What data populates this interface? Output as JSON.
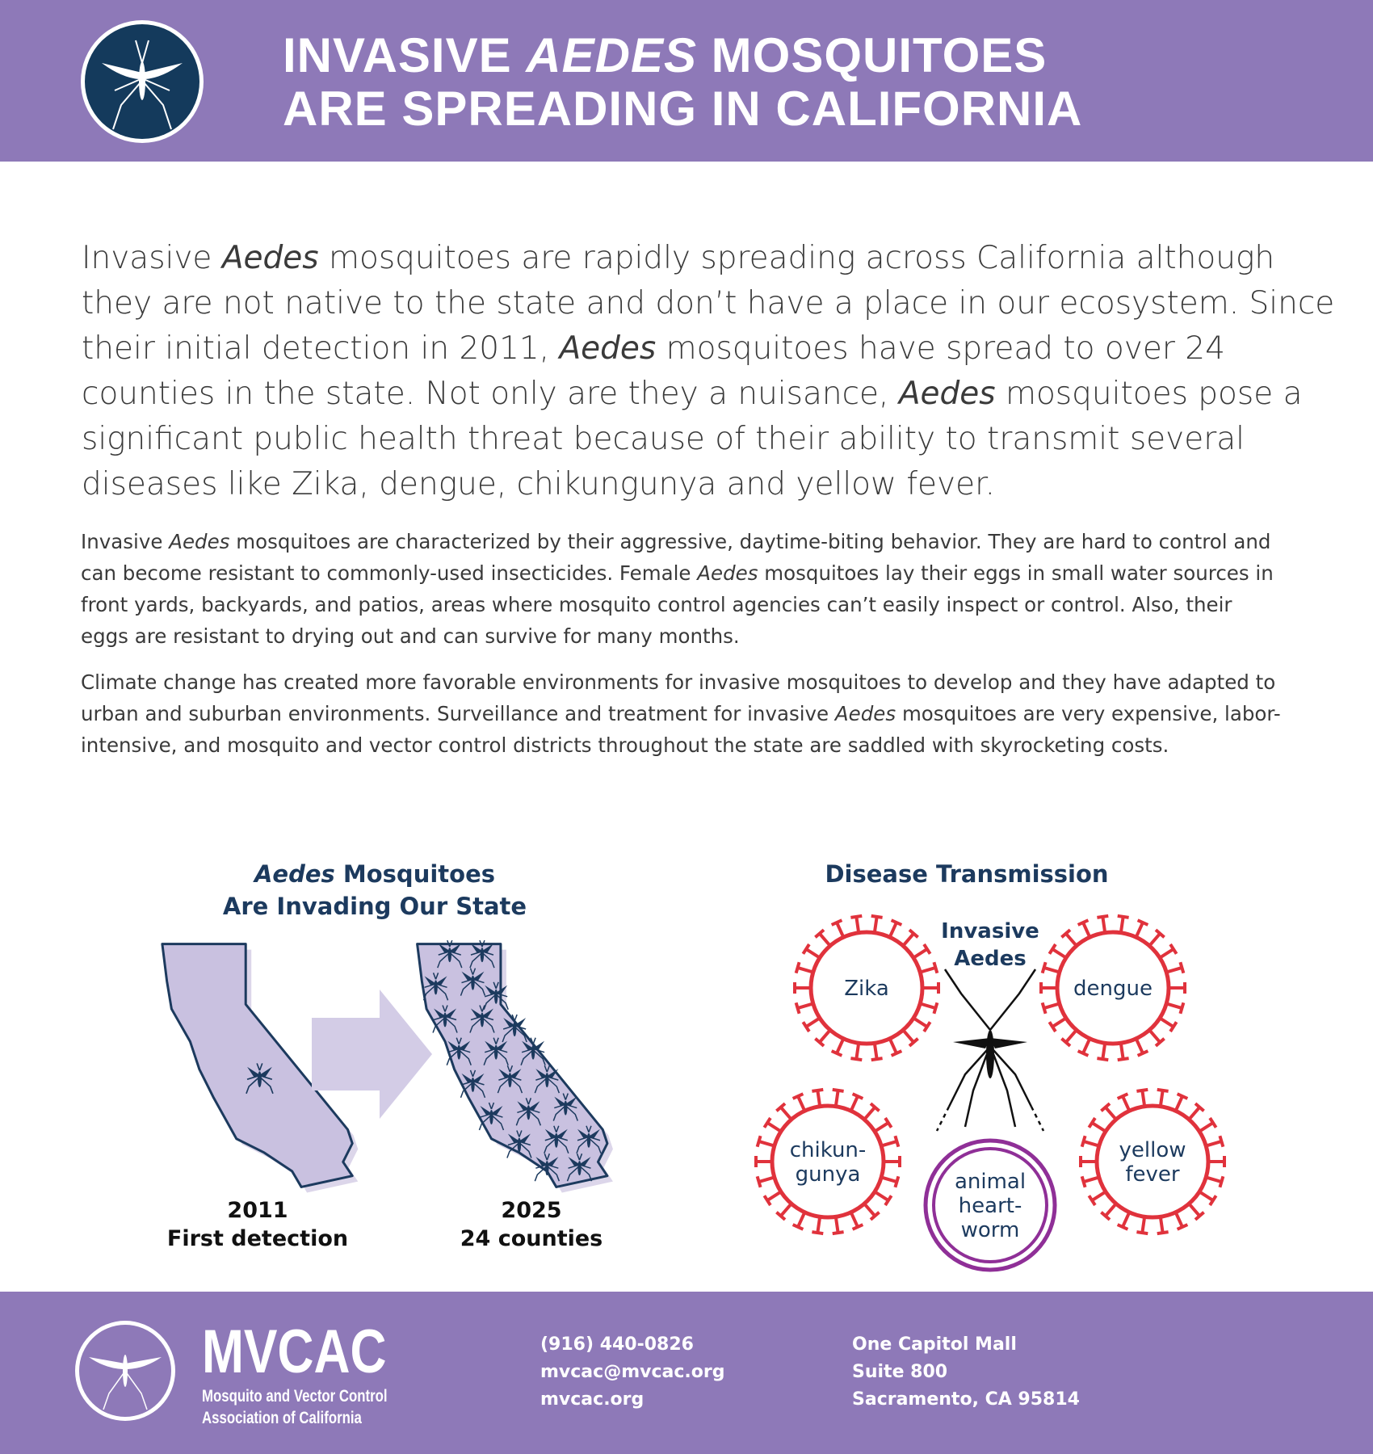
{
  "header": {
    "title_line1": [
      "INVASIVE ",
      "AEDES",
      " MOSQUITOES"
    ],
    "title_line2": "ARE SPREADING IN CALIFORNIA"
  },
  "intro": [
    "Invasive ",
    "Aedes",
    " mosquitoes are rapidly spreading across California although they are not native to the state and don’t have a place in our ecosystem. Since their initial detection in 2011, ",
    "Aedes",
    " mosquitoes have spread to over 24 counties in the state. Not only are they a nuisance, ",
    "Aedes",
    " mosquitoes pose a significant public health threat because of their ability to transmit several diseases like Zika, dengue, chikungunya and yellow fever."
  ],
  "paragraphs": [
    [
      "Invasive ",
      "Aedes",
      " mosquitoes are characterized by their aggressive, daytime-biting behavior. They are hard to control and can become resistant to commonly-used insecticides. Female ",
      "Aedes",
      " mosquitoes lay their eggs in small water sources in front yards, backyards, and patios, areas where mosquito control agencies can’t easily inspect or control. Also, their eggs are resistant to drying out and can survive for many months."
    ],
    [
      "Climate change has created more favorable environments for invasive mosquitoes to develop and they have adapted to urban and suburban environments. Surveillance and treatment for invasive ",
      "Aedes",
      " mosquitoes are very expensive, labor-intensive, and mosquito and vector control districts throughout the state are saddled with skyrocketing costs."
    ]
  ],
  "map_section": {
    "title_line1": [
      "Aedes",
      " Mosquitoes"
    ],
    "title_line2": "Are Invading Our State",
    "before": {
      "year": "2011",
      "label": "First detection"
    },
    "after": {
      "year": "2025",
      "label": "24 counties"
    }
  },
  "disease_section": {
    "title": "Disease Transmission",
    "center_label": [
      "Invasive",
      "Aedes"
    ],
    "diseases": [
      {
        "lines": [
          "Zika"
        ]
      },
      {
        "lines": [
          "dengue"
        ]
      },
      {
        "lines": [
          "chikun-",
          "gunya"
        ]
      },
      {
        "lines": [
          "yellow",
          "fever"
        ]
      },
      {
        "lines": [
          "animal",
          "heart-",
          "worm"
        ]
      }
    ]
  },
  "footer": {
    "org_short": "MVCAC",
    "org_long": [
      "Mosquito and Vector Control",
      "Association of California"
    ],
    "contact": [
      "(916) 440-0826",
      "mvcac@mvcac.org",
      "mvcac.org"
    ],
    "address": [
      "One Capitol Mall",
      "Suite 800",
      "Sacramento, CA 95814"
    ]
  }
}
